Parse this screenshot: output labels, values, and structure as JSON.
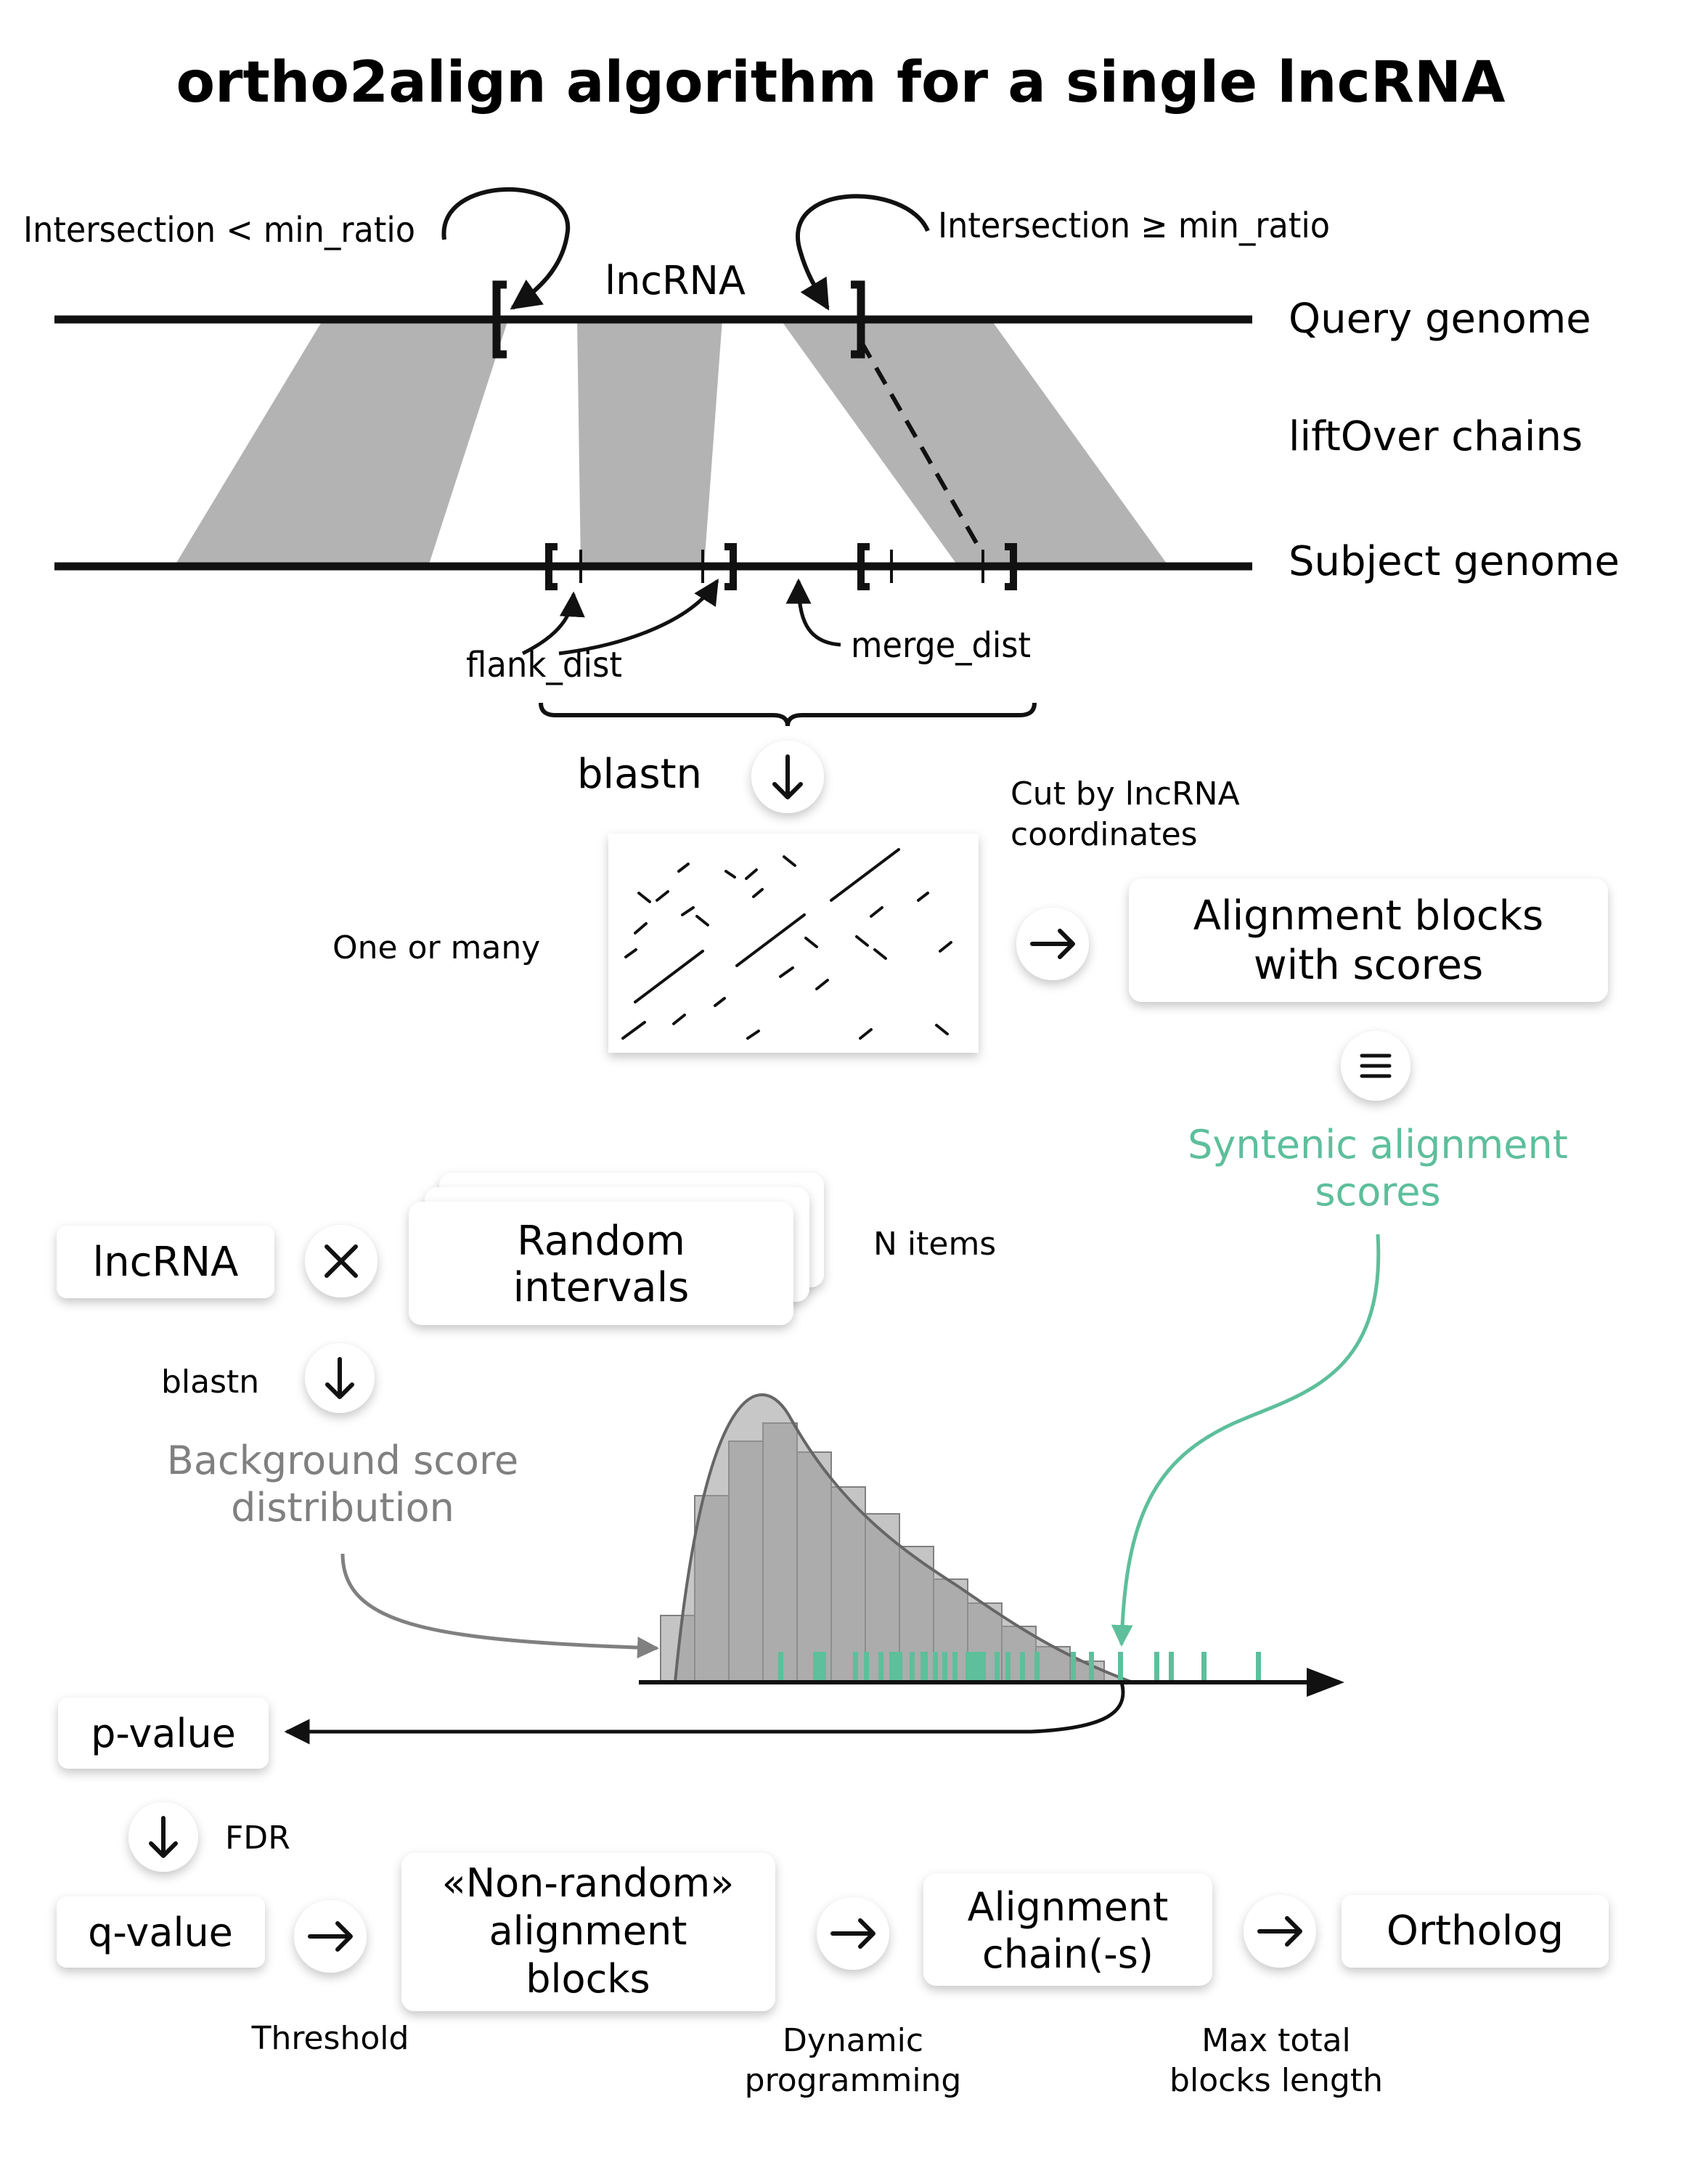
{
  "title": "ortho2align algorithm for a single lncRNA",
  "top": {
    "lncrna_label": "lncRNA",
    "query_genome": "Query genome",
    "liftover_chains": "liftOver chains",
    "subject_genome": "Subject genome",
    "intersection_lt": "Intersection < min_ratio",
    "intersection_ge": "Intersection ≥ min_ratio",
    "flank_dist": "flank_dist",
    "merge_dist": "merge_dist"
  },
  "blast_stage": {
    "blastn_label": "blastn",
    "one_or_many": "One or many",
    "cut_line1": "Cut by lncRNA",
    "cut_line2": "coordinates",
    "alignment_blocks_line1": "Alignment blocks",
    "alignment_blocks_line2": "with scores",
    "syntenic_line1": "Syntenic alignment",
    "syntenic_line2": "scores"
  },
  "background": {
    "lncrna_box": "lncRNA",
    "random_line1": "Random",
    "random_line2": "intervals",
    "n_items": "N items",
    "blastn_label": "blastn",
    "bg_line1": "Background score",
    "bg_line2": "distribution"
  },
  "bottom": {
    "pvalue": "p-value",
    "fdr": "FDR",
    "qvalue": "q-value",
    "threshold": "Threshold",
    "nonrandom_line1": "«Non-random»",
    "nonrandom_line2": "alignment",
    "nonrandom_line3": "blocks",
    "dynamic_line1": "Dynamic",
    "dynamic_line2": "programming",
    "chain_line1": "Alignment",
    "chain_line2": "chain(-s)",
    "max_line1": "Max total",
    "max_line2": "blocks length",
    "ortholog": "Ortholog"
  },
  "colors": {
    "accent_green": "#5dbf9b",
    "liftover_gray": "#b3b3b3",
    "bar_gray": "#999999",
    "bar_light": "#c4c4c4",
    "muted_text": "#808080"
  },
  "icons": {
    "down_arrow": "down-arrow-icon",
    "right_arrow": "right-arrow-icon",
    "equivalence": "equivalence-icon",
    "multiply": "multiply-icon"
  }
}
